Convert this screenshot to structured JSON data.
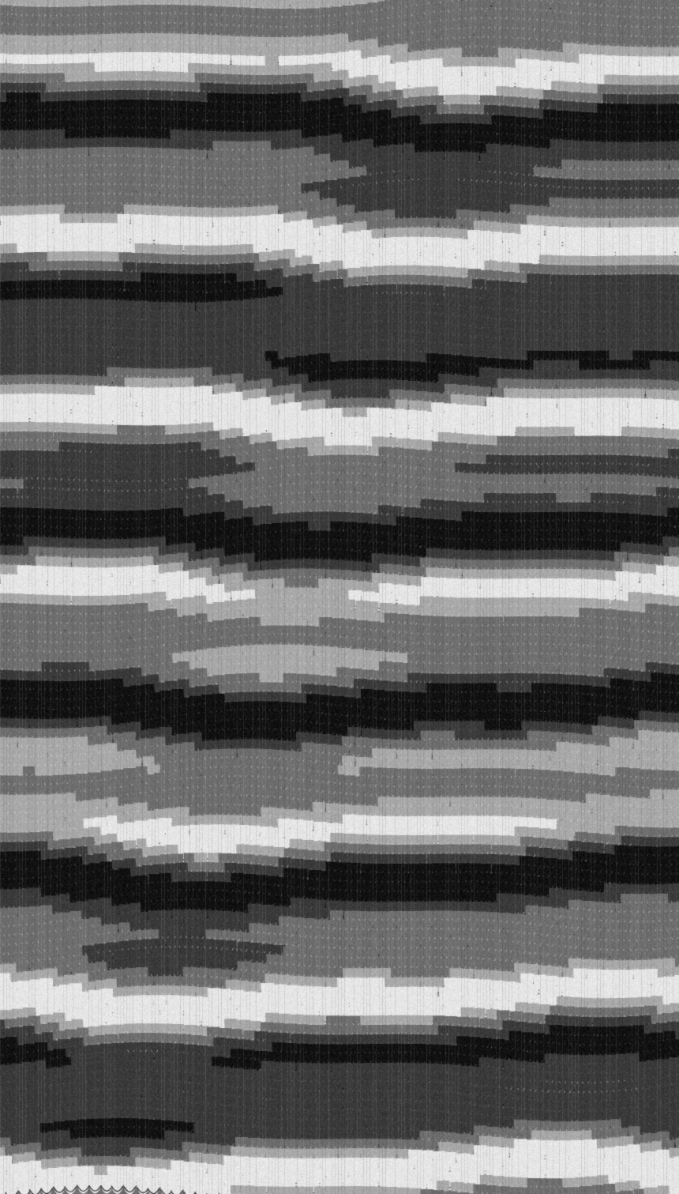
{
  "pattern": {
    "style": "nonpareil-marbled-paper",
    "colors": {
      "black": "#111111",
      "dark": "#3a3a3a",
      "mid": "#6e6e6e",
      "light": "#a8a8a8",
      "white": "#e6e6e6"
    }
  }
}
